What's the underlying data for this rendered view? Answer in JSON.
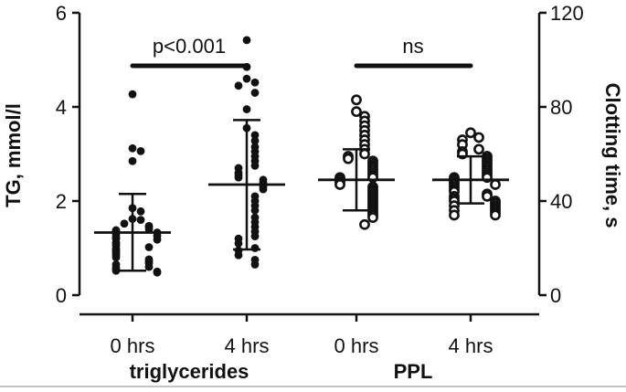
{
  "chart_data": {
    "type": "scatter",
    "subtype": "dot-plot with mean and SD bars, dual y-axis",
    "left_axis": {
      "label": "TG, mmol/l",
      "range": [
        0,
        6
      ],
      "ticks": [
        0,
        2,
        4,
        6
      ],
      "tick_labels": [
        "0",
        "2",
        "4",
        "6"
      ]
    },
    "right_axis": {
      "label": "Clotting time, s",
      "range": [
        0,
        120
      ],
      "ticks": [
        0,
        40,
        80,
        120
      ],
      "tick_labels": [
        "0",
        "40",
        "80",
        "120"
      ]
    },
    "categories": [
      "0 hrs",
      "4 hrs",
      "0 hrs",
      "4 hrs"
    ],
    "groups": [
      {
        "label": "triglycerides",
        "category_indices": [
          0,
          1
        ]
      },
      {
        "label": "PPL",
        "category_indices": [
          2,
          3
        ]
      }
    ],
    "comparisons": [
      {
        "label": "p<0.001",
        "between": [
          0,
          1
        ]
      },
      {
        "label": "ns",
        "between": [
          2,
          3
        ]
      }
    ],
    "series": [
      {
        "category_index": 0,
        "axis": "left",
        "marker": "filled",
        "mean": 1.33,
        "sd_low": 0.52,
        "sd_high": 2.15,
        "values": [
          4.27,
          3.12,
          3.06,
          2.85,
          1.85,
          1.78,
          1.62,
          1.6,
          1.52,
          1.47,
          1.45,
          1.4,
          1.38,
          1.36,
          1.33,
          1.28,
          1.26,
          1.22,
          1.2,
          1.18,
          1.12,
          1.1,
          1.05,
          1.02,
          0.98,
          0.95,
          0.92,
          0.88,
          0.84,
          0.8,
          0.76,
          0.72,
          0.68,
          0.65,
          0.6,
          0.58,
          0.55,
          0.52,
          0.5,
          0.48
        ]
      },
      {
        "category_index": 1,
        "axis": "left",
        "marker": "filled",
        "mean": 2.35,
        "sd_low": 0.97,
        "sd_high": 3.72,
        "values": [
          5.42,
          4.85,
          4.6,
          4.52,
          4.45,
          4.3,
          3.95,
          3.55,
          3.4,
          3.28,
          3.15,
          3.05,
          2.95,
          2.85,
          2.75,
          2.7,
          2.6,
          2.55,
          2.5,
          2.45,
          2.4,
          2.35,
          2.3,
          2.25,
          2.1,
          2.0,
          1.9,
          1.8,
          1.65,
          1.55,
          1.45,
          1.35,
          1.25,
          1.2,
          1.1,
          1.0,
          0.95,
          0.85,
          0.75,
          0.65
        ]
      },
      {
        "category_index": 2,
        "axis": "right",
        "marker": "open",
        "mean": 49,
        "sd_low": 36,
        "sd_high": 62,
        "values": [
          83,
          78,
          76,
          74,
          72,
          70,
          68,
          66,
          64,
          62,
          60,
          59,
          58,
          57,
          56,
          55,
          54,
          53,
          52,
          51,
          50,
          50,
          49,
          48,
          47,
          46,
          45,
          44,
          43,
          42,
          41,
          40,
          39,
          38,
          37,
          36,
          35,
          34,
          33,
          30
        ]
      },
      {
        "category_index": 3,
        "axis": "right",
        "marker": "open",
        "mean": 49,
        "sd_low": 39,
        "sd_high": 59,
        "values": [
          69,
          67,
          66,
          64,
          62,
          61,
          60,
          59,
          58,
          57,
          56,
          55,
          54,
          53,
          52,
          51,
          50,
          50,
          49,
          48,
          47,
          47,
          46,
          45,
          44,
          43,
          42,
          42,
          41,
          40,
          40,
          39,
          38,
          38,
          37,
          36,
          36,
          35,
          34,
          34
        ]
      }
    ]
  }
}
